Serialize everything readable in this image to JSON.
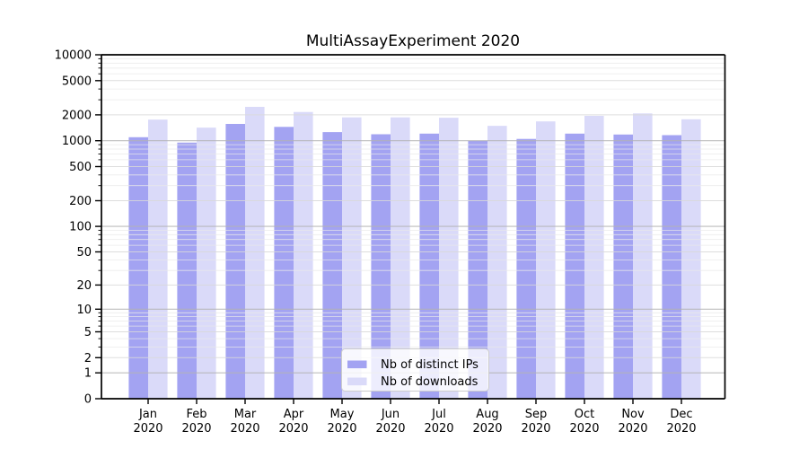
{
  "title": "MultiAssayExperiment 2020",
  "chart_data": {
    "type": "bar",
    "title": "MultiAssayExperiment 2020",
    "months": [
      "Jan",
      "Feb",
      "Mar",
      "Apr",
      "May",
      "Jun",
      "Jul",
      "Aug",
      "Sep",
      "Oct",
      "Nov",
      "Dec"
    ],
    "year": "2020",
    "categories": [
      "Jan 2020",
      "Feb 2020",
      "Mar 2020",
      "Apr 2020",
      "May 2020",
      "Jun 2020",
      "Jul 2020",
      "Aug 2020",
      "Sep 2020",
      "Oct 2020",
      "Nov 2020",
      "Dec 2020"
    ],
    "series": [
      {
        "name": "Nb of distinct IPs",
        "color": "#a3a3f2",
        "values": [
          1100,
          950,
          1570,
          1450,
          1260,
          1190,
          1210,
          1000,
          1050,
          1210,
          1180,
          1160
        ]
      },
      {
        "name": "Nb of downloads",
        "color": "#dadaf9",
        "values": [
          1760,
          1420,
          2480,
          2160,
          1870,
          1870,
          1850,
          1490,
          1680,
          1950,
          2080,
          1780
        ]
      }
    ],
    "y_ticks": [
      0,
      1,
      2,
      5,
      10,
      20,
      50,
      100,
      200,
      500,
      1000,
      2000,
      5000,
      10000
    ],
    "y_minor_ticks_pattern": [
      3,
      4,
      6,
      7,
      8,
      9
    ],
    "y_scale": "log10(v+1)",
    "ylim": [
      0,
      10000
    ],
    "grid": {
      "major": true,
      "minor": true
    },
    "legend_position": "lower center inside plot"
  },
  "colors": {
    "background": "#ffffff",
    "spine": "#000000",
    "grid_strong": "#b3b3b3",
    "grid_medium": "#d9d9d9",
    "grid_minor": "#e9e9e9",
    "legend_border": "#cccccc",
    "legend_bg": "rgba(255,255,255,0.8)",
    "text": "#000000"
  }
}
